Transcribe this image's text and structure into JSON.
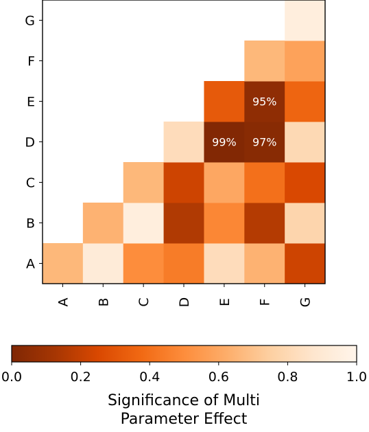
{
  "chart_data": {
    "type": "heatmap",
    "categories": [
      "A",
      "B",
      "C",
      "D",
      "E",
      "F",
      "G"
    ],
    "x_ticks": [
      "A",
      "B",
      "C",
      "D",
      "E",
      "F",
      "G"
    ],
    "y_ticks": [
      "A",
      "B",
      "C",
      "D",
      "E",
      "F",
      "G"
    ],
    "cells": [
      {
        "x": "A",
        "y": "A",
        "value": 0.66
      },
      {
        "x": "B",
        "y": "A",
        "value": 0.92
      },
      {
        "x": "C",
        "y": "A",
        "value": 0.5
      },
      {
        "x": "D",
        "y": "A",
        "value": 0.44
      },
      {
        "x": "E",
        "y": "A",
        "value": 0.82
      },
      {
        "x": "F",
        "y": "A",
        "value": 0.64
      },
      {
        "x": "G",
        "y": "A",
        "value": 0.22
      },
      {
        "x": "B",
        "y": "B",
        "value": 0.64
      },
      {
        "x": "C",
        "y": "B",
        "value": 0.94
      },
      {
        "x": "D",
        "y": "B",
        "value": 0.15
      },
      {
        "x": "E",
        "y": "B",
        "value": 0.48
      },
      {
        "x": "F",
        "y": "B",
        "value": 0.16
      },
      {
        "x": "G",
        "y": "B",
        "value": 0.78
      },
      {
        "x": "C",
        "y": "C",
        "value": 0.66
      },
      {
        "x": "D",
        "y": "C",
        "value": 0.22
      },
      {
        "x": "E",
        "y": "C",
        "value": 0.6
      },
      {
        "x": "F",
        "y": "C",
        "value": 0.4
      },
      {
        "x": "G",
        "y": "C",
        "value": 0.25
      },
      {
        "x": "D",
        "y": "D",
        "value": 0.82
      },
      {
        "x": "E",
        "y": "D",
        "value": 0.01,
        "label": "99%"
      },
      {
        "x": "F",
        "y": "D",
        "value": 0.03,
        "label": "97%"
      },
      {
        "x": "G",
        "y": "D",
        "value": 0.8
      },
      {
        "x": "E",
        "y": "E",
        "value": 0.32
      },
      {
        "x": "F",
        "y": "E",
        "value": 0.05,
        "label": "95%"
      },
      {
        "x": "G",
        "y": "E",
        "value": 0.36
      },
      {
        "x": "F",
        "y": "F",
        "value": 0.66
      },
      {
        "x": "G",
        "y": "F",
        "value": 0.58
      },
      {
        "x": "G",
        "y": "G",
        "value": 0.94
      }
    ],
    "colorbar": {
      "range": [
        0.0,
        1.0
      ],
      "ticks": [
        "0.0",
        "0.2",
        "0.4",
        "0.6",
        "0.8",
        "1.0"
      ],
      "label_line1": "Significance of Multi",
      "label_line2": "Parameter Effect",
      "colormap": "oranges-reversed"
    },
    "colors": {
      "low": "#7f2704",
      "mid": "#f16913",
      "high": "#fff5eb",
      "annotation_text": "#ffffff"
    }
  }
}
